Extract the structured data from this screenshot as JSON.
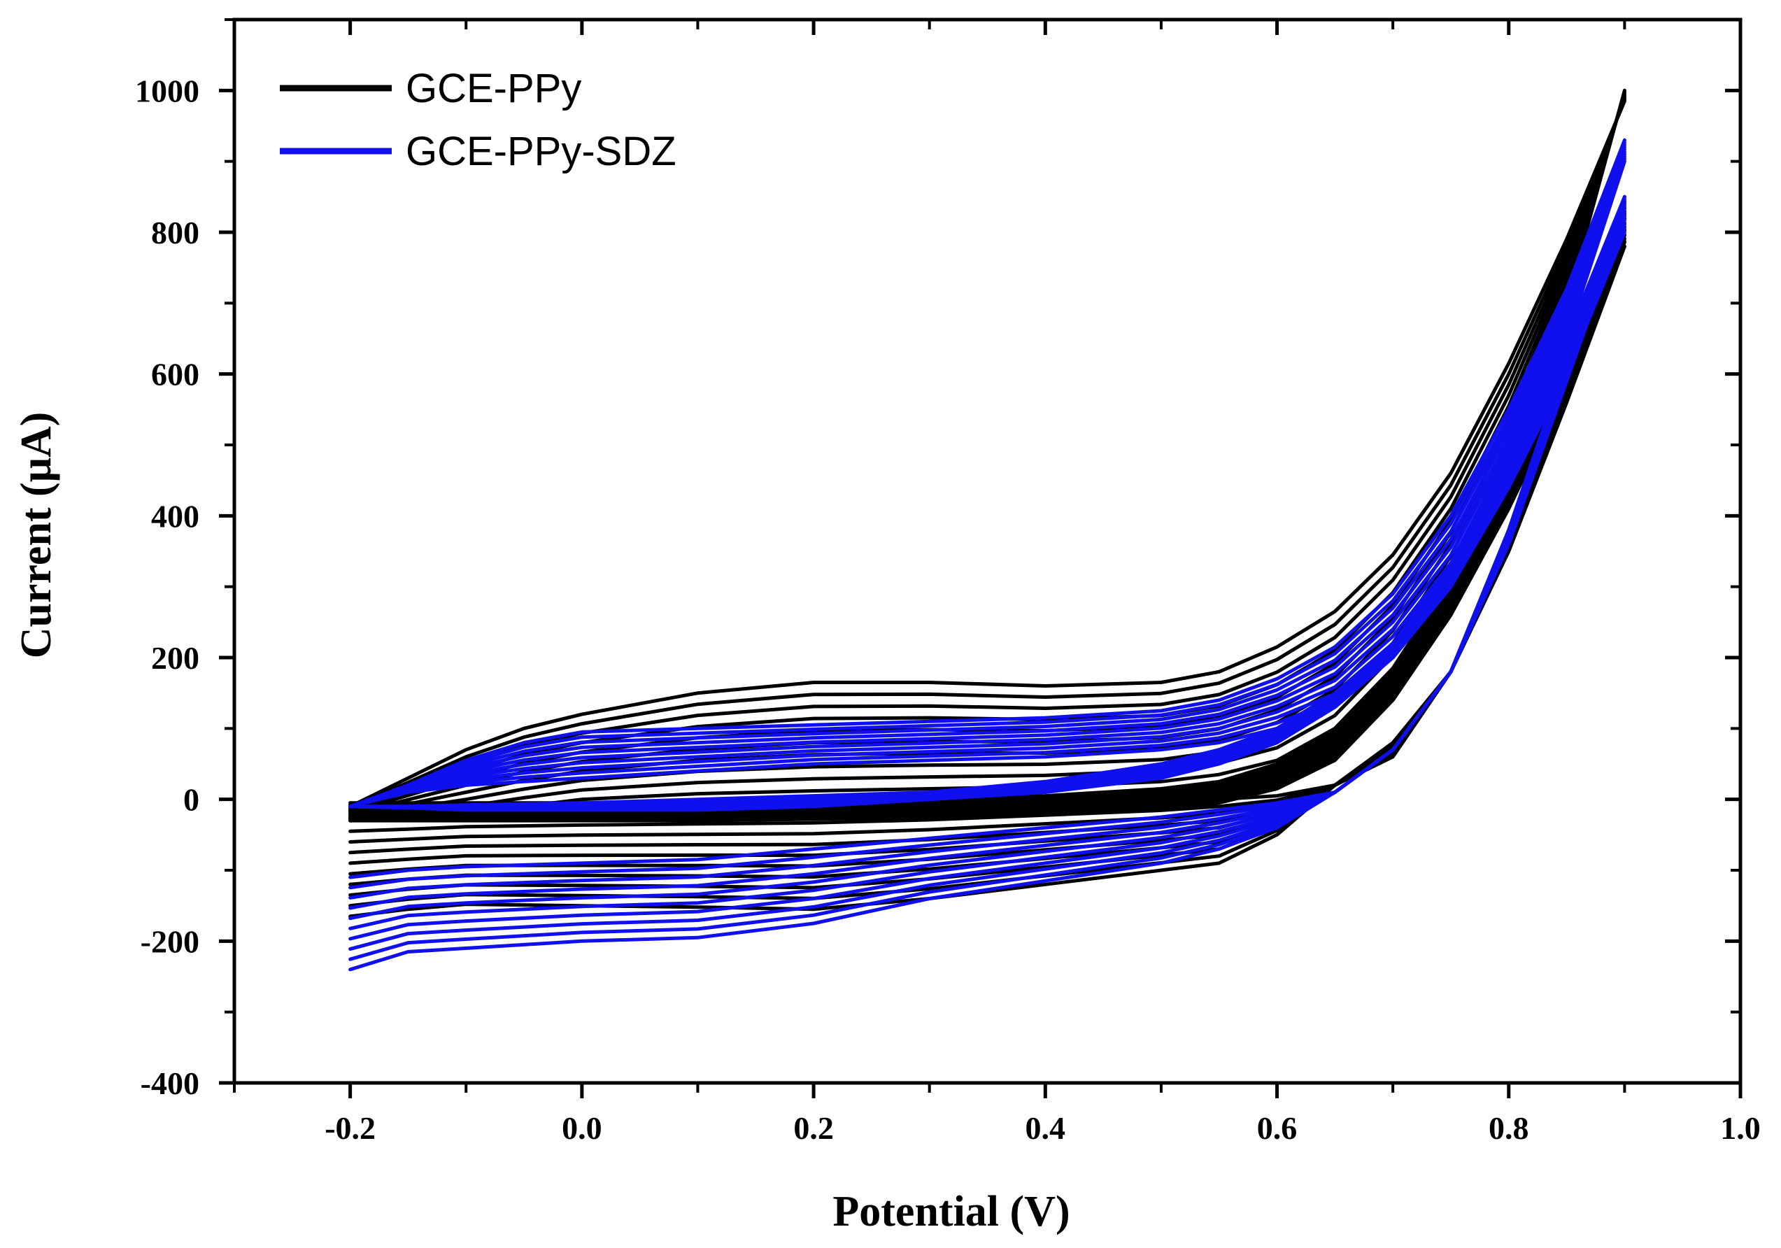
{
  "chart_data": {
    "type": "line",
    "title": "",
    "xlabel": "Potential (V)",
    "ylabel": "Current (μA)",
    "xlim": [
      -0.3,
      1.0
    ],
    "ylim": [
      -400,
      1100
    ],
    "xticks": [
      -0.2,
      0.0,
      0.2,
      0.4,
      0.6,
      0.8,
      1.0
    ],
    "xtick_labels": [
      "-0.2",
      "0.0",
      "0.2",
      "0.4",
      "0.6",
      "0.8",
      "1.0"
    ],
    "yticks": [
      -400,
      -200,
      0,
      200,
      400,
      600,
      800,
      1000
    ],
    "ytick_labels": [
      "-400",
      "-200",
      "0",
      "200",
      "400",
      "600",
      "800",
      "1000"
    ],
    "legend_position": "top-left",
    "series": [
      {
        "name": "GCE-PPy",
        "color": "#000000",
        "cycles": 10,
        "anodic": {
          "x": [
            -0.2,
            -0.15,
            -0.1,
            -0.05,
            0.0,
            0.1,
            0.2,
            0.3,
            0.4,
            0.5,
            0.55,
            0.6,
            0.65,
            0.7,
            0.75,
            0.8,
            0.85,
            0.9
          ],
          "y_first": [
            -30,
            -25,
            -20,
            -10,
            0,
            8,
            12,
            15,
            18,
            25,
            35,
            55,
            100,
            185,
            310,
            480,
            700,
            1000
          ],
          "y_last": [
            -10,
            30,
            70,
            100,
            120,
            150,
            165,
            165,
            160,
            165,
            180,
            215,
            265,
            345,
            460,
            615,
            790,
            985
          ]
        },
        "cathodic": {
          "x": [
            0.9,
            0.85,
            0.8,
            0.75,
            0.7,
            0.65,
            0.6,
            0.55,
            0.5,
            0.4,
            0.3,
            0.2,
            0.1,
            0.0,
            -0.1,
            -0.15,
            -0.2
          ],
          "y_first": [
            780,
            580,
            410,
            260,
            140,
            55,
            15,
            -5,
            -15,
            -20,
            -25,
            -28,
            -30,
            -30,
            -30,
            -30,
            -30
          ],
          "y_last": [
            830,
            640,
            470,
            310,
            185,
            100,
            50,
            25,
            15,
            5,
            0,
            -5,
            -5,
            -5,
            -5,
            -5,
            -5
          ]
        },
        "return": {
          "x": [
            -0.2,
            -0.15,
            -0.1,
            0.0,
            0.1,
            0.2,
            0.3,
            0.4,
            0.5,
            0.55,
            0.6,
            0.65,
            0.7,
            0.75,
            0.8,
            0.85,
            0.9
          ],
          "y_first": [
            -30,
            -28,
            -25,
            -22,
            -20,
            -18,
            -15,
            -10,
            -5,
            0,
            5,
            20,
            60,
            180,
            380,
            620,
            850
          ],
          "y_last": [
            -165,
            -155,
            -148,
            -150,
            -152,
            -155,
            -140,
            -120,
            -100,
            -90,
            -50,
            20,
            80,
            180,
            350,
            560,
            780
          ]
        }
      },
      {
        "name": "GCE-PPy-SDZ",
        "color": "#1010ee",
        "cycles": 10,
        "anodic": {
          "x": [
            -0.2,
            -0.15,
            -0.1,
            -0.05,
            0.0,
            0.1,
            0.2,
            0.3,
            0.4,
            0.5,
            0.55,
            0.6,
            0.65,
            0.7,
            0.75,
            0.8,
            0.85,
            0.9
          ],
          "y_first": [
            -10,
            10,
            20,
            25,
            30,
            40,
            50,
            55,
            60,
            70,
            80,
            100,
            130,
            200,
            300,
            460,
            650,
            900
          ],
          "y_last": [
            -10,
            20,
            55,
            80,
            95,
            100,
            105,
            110,
            115,
            125,
            140,
            170,
            215,
            290,
            400,
            550,
            720,
            930
          ]
        },
        "cathodic": {
          "x": [
            0.9,
            0.85,
            0.8,
            0.75,
            0.7,
            0.65,
            0.6,
            0.55,
            0.5,
            0.4,
            0.3,
            0.2,
            0.1,
            0.0,
            -0.1,
            -0.15,
            -0.2
          ],
          "y_first": [
            800,
            600,
            440,
            300,
            200,
            130,
            80,
            50,
            30,
            10,
            0,
            -10,
            -15,
            -15,
            -15,
            -12,
            -10
          ],
          "y_last": [
            850,
            650,
            480,
            330,
            220,
            150,
            100,
            70,
            50,
            25,
            10,
            5,
            0,
            -5,
            -8,
            -10,
            -10
          ]
        },
        "return": {
          "x": [
            -0.2,
            -0.15,
            -0.1,
            0.0,
            0.1,
            0.2,
            0.3,
            0.4,
            0.5,
            0.55,
            0.6,
            0.65,
            0.7,
            0.75,
            0.8,
            0.85,
            0.9
          ],
          "y_first": [
            -110,
            -100,
            -95,
            -90,
            -85,
            -70,
            -55,
            -40,
            -25,
            -15,
            -5,
            10,
            70,
            180,
            380,
            620,
            850
          ],
          "y_last": [
            -240,
            -215,
            -210,
            -200,
            -195,
            -175,
            -140,
            -115,
            -90,
            -70,
            -40,
            10,
            70,
            180,
            360,
            590,
            820
          ]
        }
      }
    ]
  }
}
